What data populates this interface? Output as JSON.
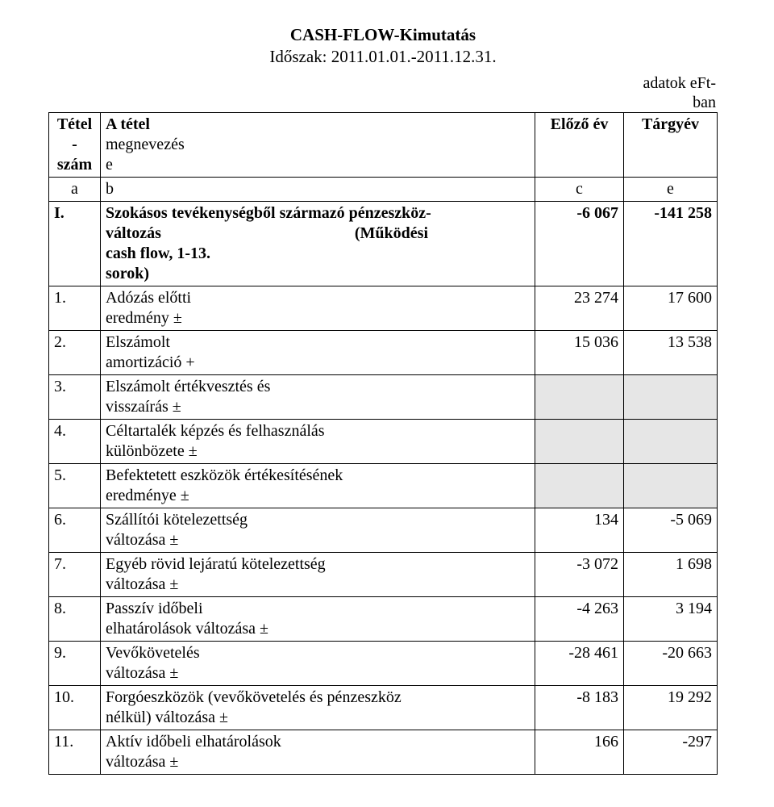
{
  "title": "CASH-FLOW-Kimutatás",
  "period": "Időszak: 2011.01.01.-2011.12.31.",
  "unit_line1": "adatok eFt-",
  "unit_line2": "ban",
  "header": {
    "col1_line1": "Tétel",
    "col1_line2": "-",
    "col1_line3": "szám",
    "col2_line1": "A tétel",
    "col2_line2": "megnevezés",
    "col2_line3": "e",
    "col3": "Előző év",
    "col4": "Tárgyév"
  },
  "code_row": {
    "a": "a",
    "b": "b",
    "c": "c",
    "e": "e"
  },
  "rows": [
    {
      "num": "I.",
      "name1": "Szokásos tevékenységből származó pénzeszköz-",
      "name2": "változás",
      "name2_suffix": "(Működési",
      "name3": "cash flow, 1-13.",
      "name4": "sorok)",
      "bold": true,
      "prev": "-6 067",
      "curr": "-141 258"
    },
    {
      "num": "1.",
      "name1": "Adózás előtti",
      "name2": "eredmény ±",
      "prev": "23 274",
      "curr": "17 600"
    },
    {
      "num": "2.",
      "name1": "Elszámolt",
      "name2": "amortizáció +",
      "prev": "15 036",
      "curr": "13 538"
    },
    {
      "num": "3.",
      "name1": "Elszámolt értékvesztés és",
      "name2": "visszaírás ±",
      "prev": "",
      "curr": "",
      "shaded": true
    },
    {
      "num": "4.",
      "name1": "Céltartalék képzés és felhasználás",
      "name2": "különbözete ±",
      "prev": "",
      "curr": "",
      "shaded": true
    },
    {
      "num": "5.",
      "name1": "Befektetett eszközök értékesítésének",
      "name2": "eredménye ±",
      "prev": "",
      "curr": "",
      "shaded": true
    },
    {
      "num": "6.",
      "name1": "Szállítói kötelezettség",
      "name2": "változása ±",
      "prev": "134",
      "curr": "-5 069"
    },
    {
      "num": "7.",
      "name1": "Egyéb rövid lejáratú kötelezettség",
      "name2": "változása ±",
      "prev": "-3 072",
      "curr": "1 698"
    },
    {
      "num": "8.",
      "name1": "Passzív időbeli",
      "name2": "elhatárolások változása ±",
      "prev": "-4 263",
      "curr": "3 194"
    },
    {
      "num": "9.",
      "name1": "Vevőkövetelés",
      "name2": "változása ±",
      "prev": "-28 461",
      "curr": "-20 663"
    },
    {
      "num": "10.",
      "name1": "Forgóeszközök (vevőkövetelés és pénzeszköz",
      "name2": "nélkül) változása ±",
      "prev": "-8 183",
      "curr": "19 292"
    },
    {
      "num": "11.",
      "name1": "Aktív időbeli elhatárolások",
      "name2": "változása ±",
      "prev": "166",
      "curr": "-297"
    }
  ]
}
